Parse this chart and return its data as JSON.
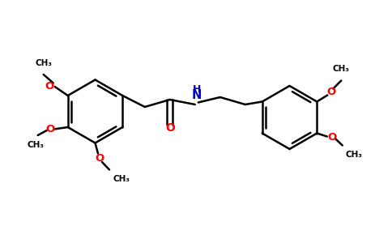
{
  "background_color": "#ffffff",
  "bond_color": "#000000",
  "oxygen_color": "#ff0000",
  "nitrogen_color": "#0000cc",
  "line_width": 1.8,
  "font_size": 10,
  "figsize": [
    4.84,
    3.0
  ],
  "dpi": 100,
  "xlim": [
    0,
    9.68
  ],
  "ylim": [
    0,
    6.0
  ]
}
